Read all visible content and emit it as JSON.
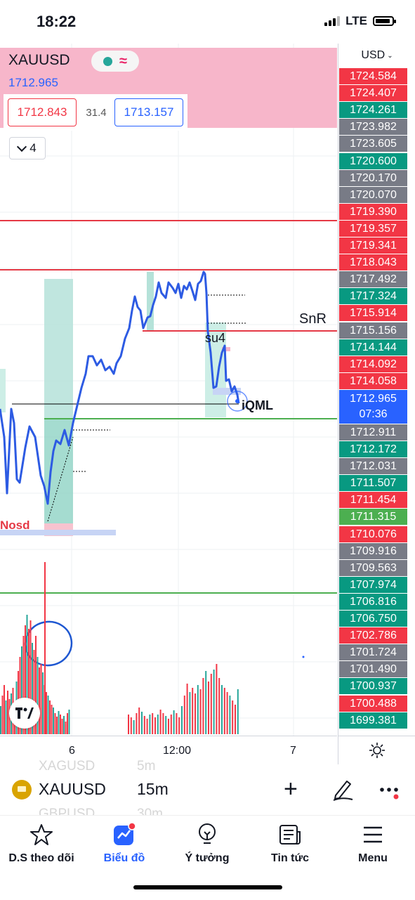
{
  "status_bar": {
    "time": "18:22",
    "network": "LTE"
  },
  "header": {
    "symbol": "XAUUSD",
    "last_price": "1712.965",
    "bid": "1712.843",
    "spread": "31.4",
    "ask": "1713.157",
    "indicator_count": "4",
    "pill_icons": [
      "market-open-dot-icon",
      "wave-icon"
    ]
  },
  "price_scale": {
    "currency": "USD",
    "labels": [
      {
        "text": "1724.584",
        "color": "#f23645"
      },
      {
        "text": "1724.407",
        "color": "#f23645"
      },
      {
        "text": "1724.261",
        "color": "#089981"
      },
      {
        "text": "1723.982",
        "color": "#787b86"
      },
      {
        "text": "1723.605",
        "color": "#787b86"
      },
      {
        "text": "1720.600",
        "color": "#089981"
      },
      {
        "text": "1720.170",
        "color": "#787b86"
      },
      {
        "text": "1720.070",
        "color": "#787b86"
      },
      {
        "text": "1719.390",
        "color": "#f23645"
      },
      {
        "text": "1719.357",
        "color": "#f23645"
      },
      {
        "text": "1719.341",
        "color": "#f23645"
      },
      {
        "text": "1718.043",
        "color": "#f23645"
      },
      {
        "text": "1717.492",
        "color": "#787b86"
      },
      {
        "text": "1717.324",
        "color": "#089981"
      },
      {
        "text": "1715.914",
        "color": "#f23645"
      },
      {
        "text": "1715.156",
        "color": "#787b86"
      },
      {
        "text": "1714.144",
        "color": "#089981"
      },
      {
        "text": "1714.092",
        "color": "#f23645"
      },
      {
        "text": "1714.058",
        "color": "#f23645"
      },
      {
        "text": "current",
        "color": "#2962ff"
      },
      {
        "text": "1712.911",
        "color": "#787b86"
      },
      {
        "text": "1712.172",
        "color": "#089981"
      },
      {
        "text": "1712.031",
        "color": "#787b86"
      },
      {
        "text": "1711.507",
        "color": "#089981"
      },
      {
        "text": "1711.454",
        "color": "#f23645"
      },
      {
        "text": "1711.315",
        "color": "#4caf50"
      },
      {
        "text": "1710.076",
        "color": "#f23645"
      },
      {
        "text": "1709.916",
        "color": "#787b86"
      },
      {
        "text": "1709.563",
        "color": "#787b86"
      },
      {
        "text": "1707.974",
        "color": "#089981"
      },
      {
        "text": "1706.816",
        "color": "#089981"
      },
      {
        "text": "1706.750",
        "color": "#089981"
      },
      {
        "text": "1702.786",
        "color": "#f23645"
      },
      {
        "text": "1701.724",
        "color": "#787b86"
      },
      {
        "text": "1701.490",
        "color": "#787b86"
      },
      {
        "text": "1700.937",
        "color": "#089981"
      },
      {
        "text": "1700.488",
        "color": "#f23645"
      },
      {
        "text": "1699.381",
        "color": "#089981"
      }
    ],
    "current_price": "1712.965",
    "countdown": "07:36"
  },
  "chart_annotations": {
    "snr": "SnR",
    "su4": "su4",
    "iqml": "iQML",
    "nosd": "Nosd"
  },
  "time_axis": {
    "labels": [
      "6",
      "12:00",
      "7"
    ]
  },
  "toolbar": {
    "symbol": "XAUUSD",
    "interval": "15m",
    "ghost_symbols": [
      "XAGUSD",
      "GBPUSD"
    ],
    "ghost_intervals": [
      "5m",
      "30m"
    ]
  },
  "tabs": [
    {
      "label": "D.S theo dõi",
      "icon": "star-icon",
      "active": false
    },
    {
      "label": "Biểu đồ",
      "icon": "chart-icon",
      "active": true
    },
    {
      "label": "Ý tưởng",
      "icon": "lightbulb-icon",
      "active": false
    },
    {
      "label": "Tin tức",
      "icon": "news-icon",
      "active": false
    },
    {
      "label": "Menu",
      "icon": "hamburger-icon",
      "active": false
    }
  ],
  "colors": {
    "accent": "#2962ff",
    "up": "#089981",
    "down": "#f23645",
    "neutral": "#787b86",
    "price_line": "#2d5be3"
  }
}
